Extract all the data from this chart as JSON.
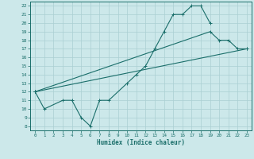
{
  "title": "",
  "xlabel": "Humidex (Indice chaleur)",
  "ylabel": "",
  "bg_color": "#cce8ea",
  "grid_color": "#aacfd2",
  "line_color": "#1a6e6a",
  "xlim": [
    -0.5,
    23.5
  ],
  "ylim": [
    7.5,
    22.5
  ],
  "xticks": [
    0,
    1,
    2,
    3,
    4,
    5,
    6,
    7,
    8,
    9,
    10,
    11,
    12,
    13,
    14,
    15,
    16,
    17,
    18,
    19,
    20,
    21,
    22,
    23
  ],
  "yticks": [
    8,
    9,
    10,
    11,
    12,
    13,
    14,
    15,
    16,
    17,
    18,
    19,
    20,
    21,
    22
  ],
  "line1_x": [
    0,
    1,
    3,
    4,
    5,
    6,
    7,
    8,
    10,
    11,
    12,
    13,
    14,
    15,
    16,
    17,
    18,
    19
  ],
  "line1_y": [
    12,
    10,
    11,
    11,
    9,
    8,
    11,
    11,
    13,
    14,
    15,
    17,
    19,
    21,
    21,
    22,
    22,
    20
  ],
  "line2_x": [
    0,
    19,
    20,
    21,
    22,
    23
  ],
  "line2_y": [
    12,
    19,
    18,
    18,
    17,
    17
  ],
  "line3_x": [
    0,
    23
  ],
  "line3_y": [
    12,
    17
  ]
}
